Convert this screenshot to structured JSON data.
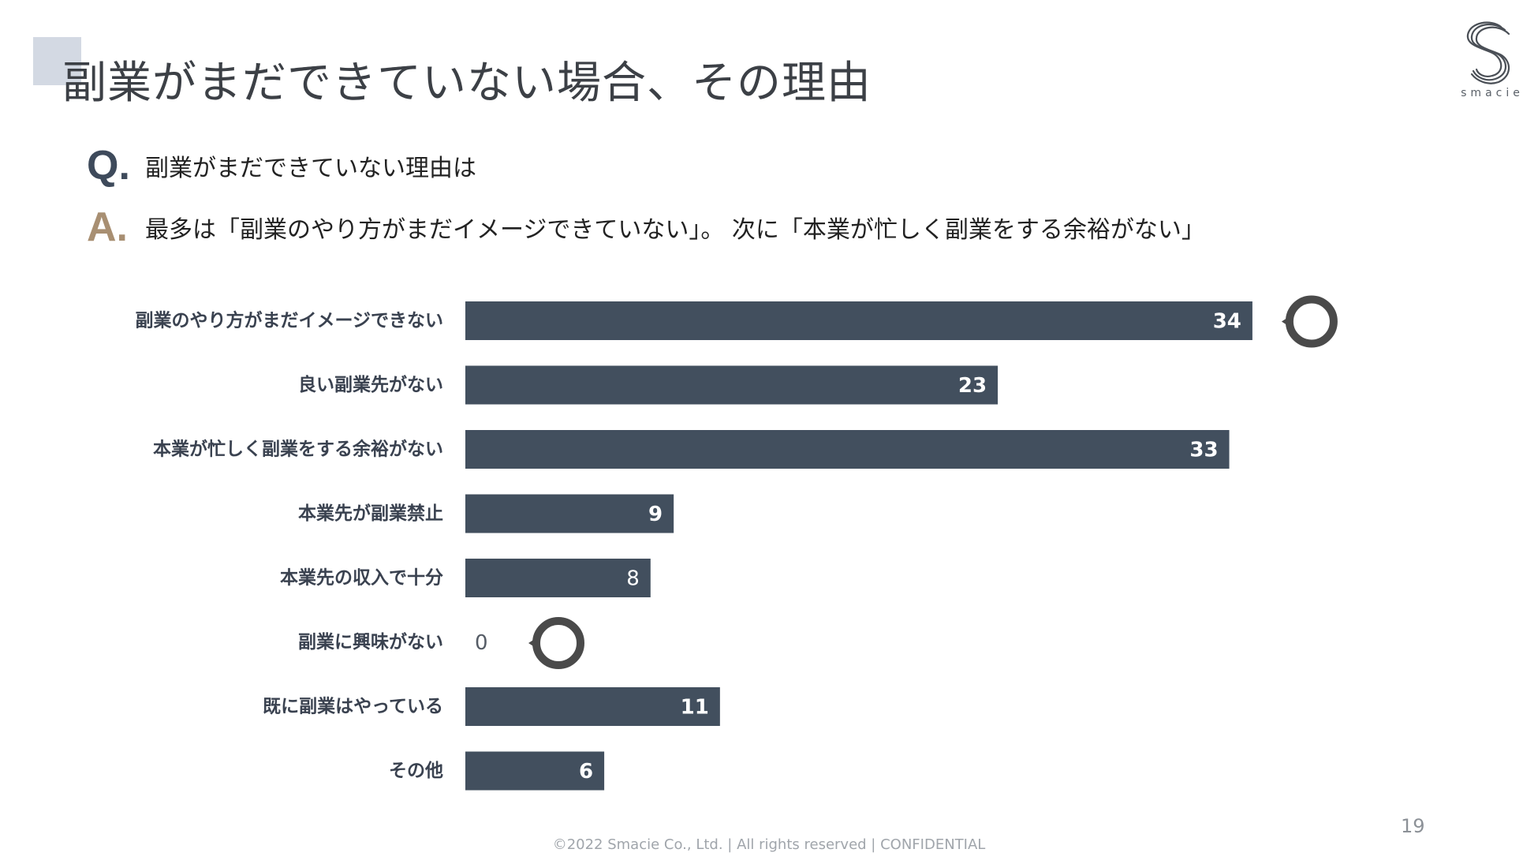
{
  "header": {
    "title": "副業がまだできていない場合、その理由",
    "logo_text": "smacie"
  },
  "qa": {
    "q_mark": "Q.",
    "question": "副業がまだできていない理由は",
    "a_mark": "A.",
    "answer": "最多は「副業のやり方がまだイメージできていない」。 次に「本業が忙しく副業をする余裕がない」"
  },
  "colors": {
    "bar": "#424f5e",
    "accent_q": "#3e4a5b",
    "accent_a": "#a88f72",
    "callout": "#4a4a4a"
  },
  "chart_data": {
    "type": "bar",
    "orientation": "horizontal",
    "categories": [
      "副業のやり方がまだイメージできない",
      "良い副業先がない",
      "本業が忙しく副業をする余裕がない",
      "本業先が副業禁止",
      "本業先の収入で十分",
      "副業に興味がない",
      "既に副業はやっている",
      "その他"
    ],
    "values": [
      34,
      23,
      33,
      9,
      8,
      0,
      11,
      6
    ],
    "value_labels": [
      "34",
      "23",
      "33",
      "9",
      "8",
      "0",
      "11",
      "6"
    ],
    "highlighted": [
      "副業のやり方がまだイメージできない",
      "副業に興味がない"
    ],
    "xlim": [
      0,
      36
    ],
    "grid": false,
    "legend": "none"
  },
  "footer": {
    "copyright": "©2022 Smacie Co., Ltd. | All rights reserved | CONFIDENTIAL",
    "page_number": "19"
  }
}
